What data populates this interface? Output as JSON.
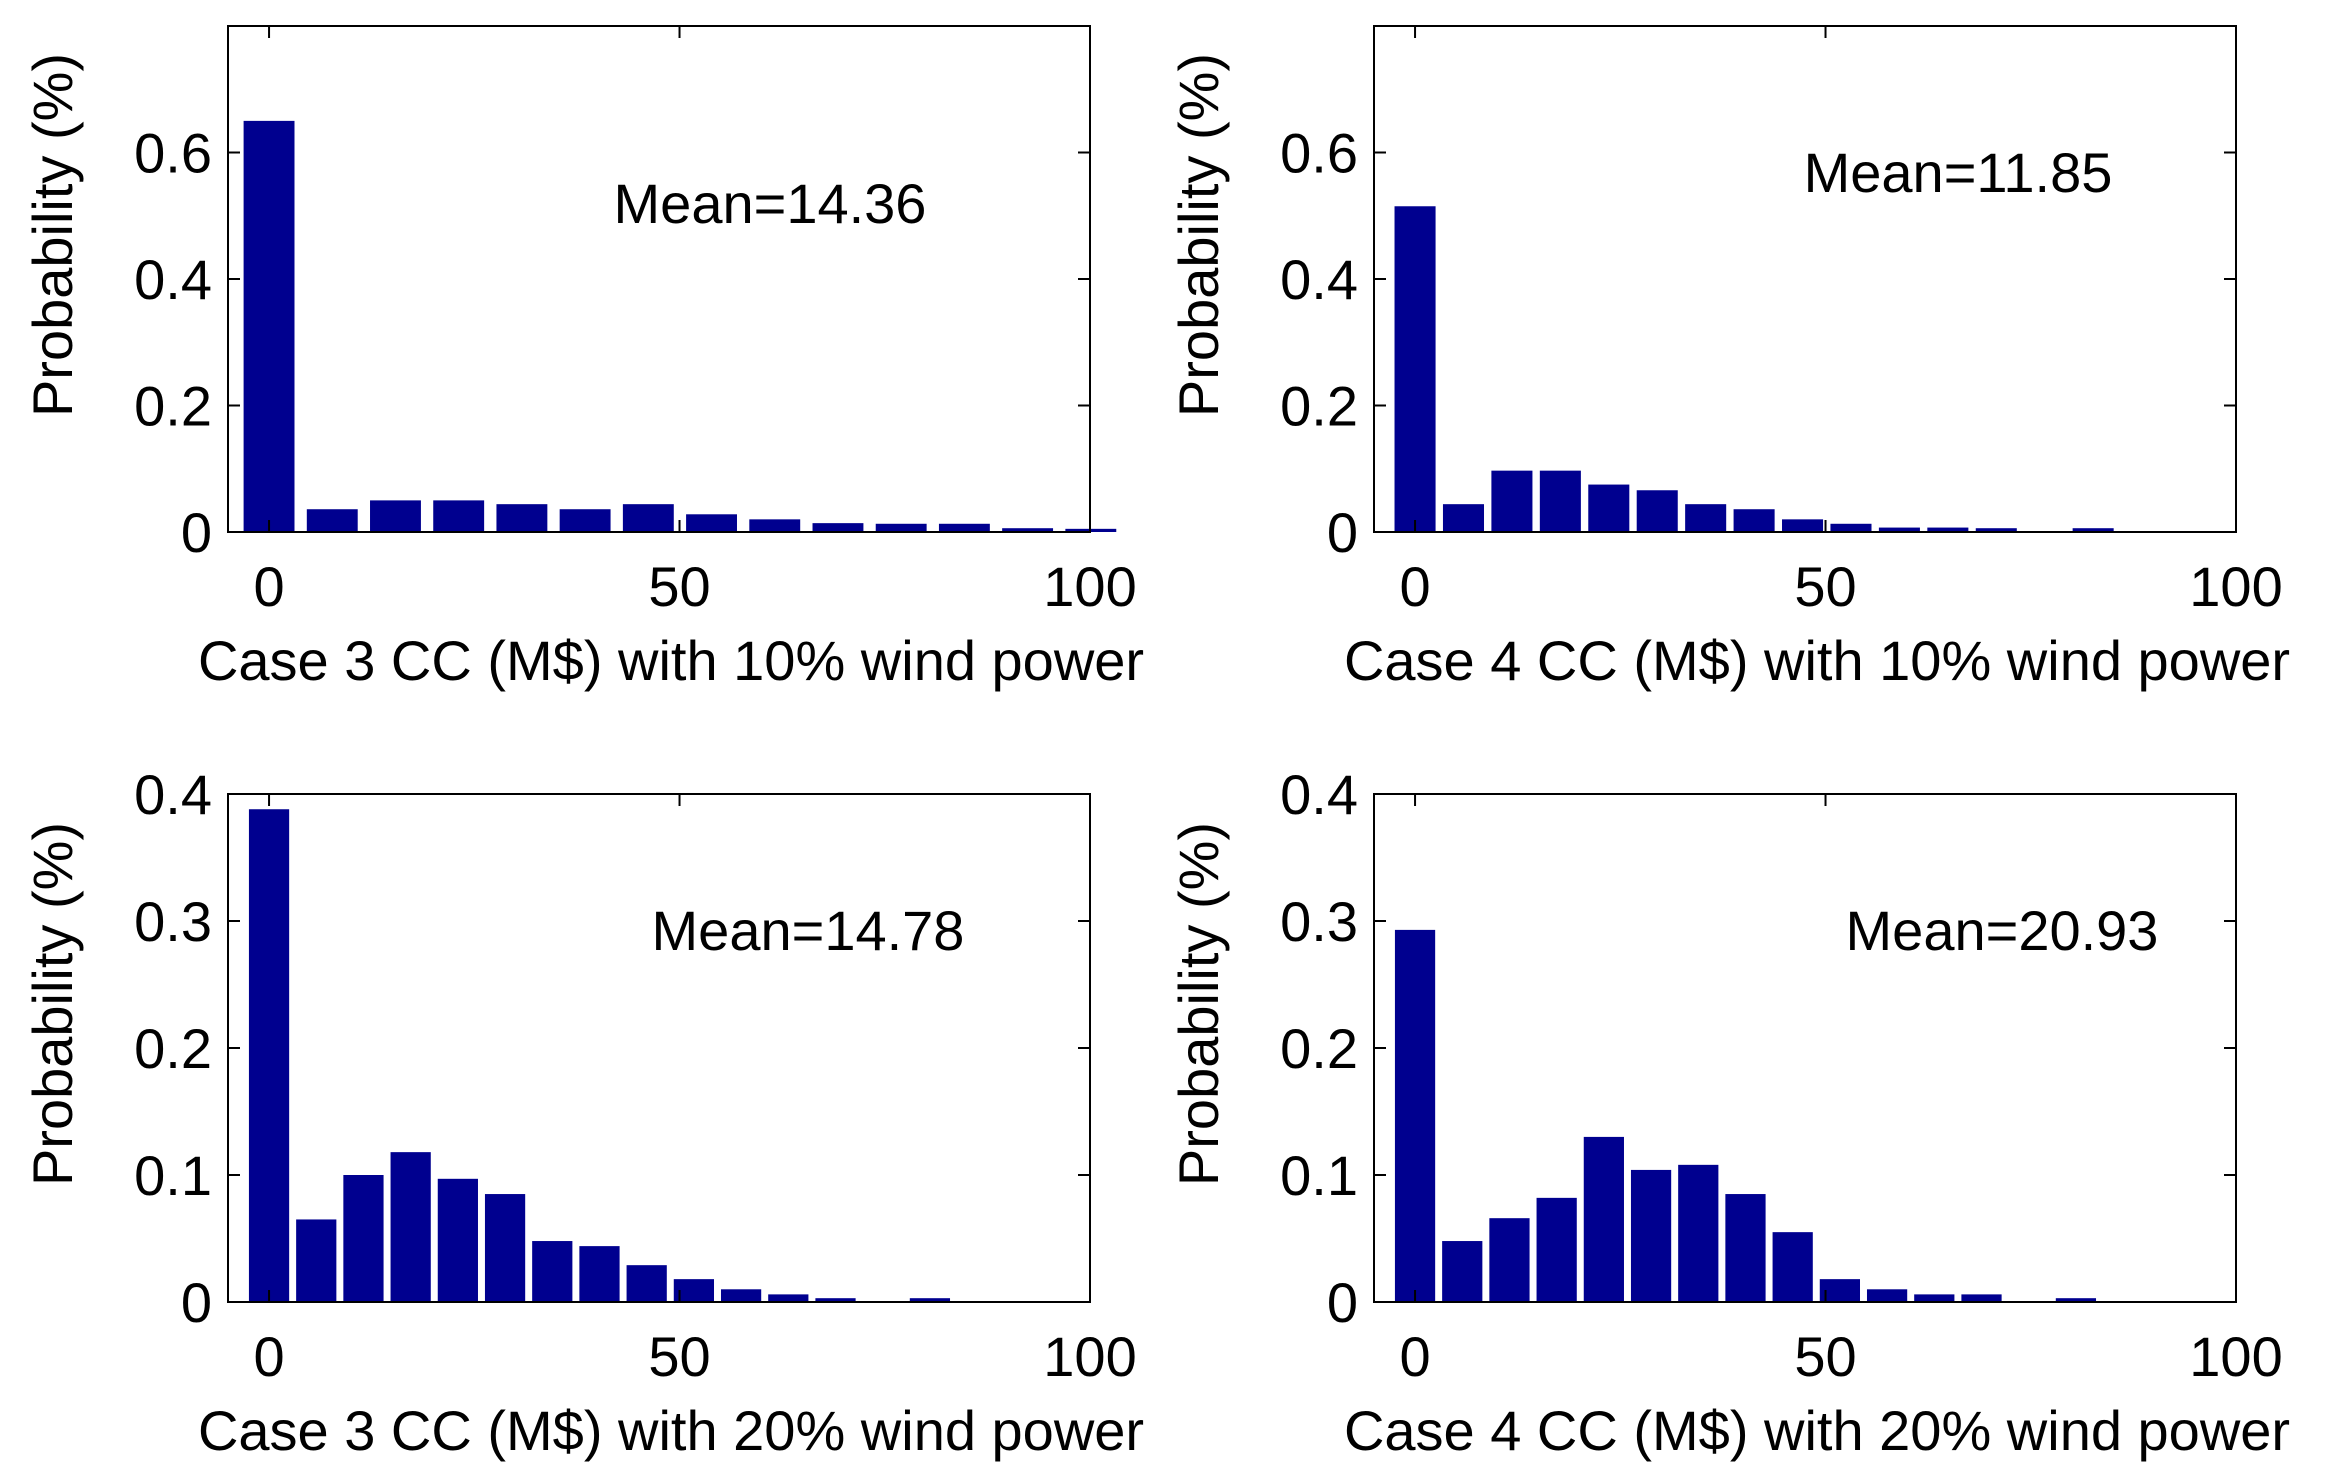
{
  "colors": {
    "bar": "#00008F",
    "axis": "#000000",
    "background": "#FFFFFF"
  },
  "chart_data": [
    {
      "type": "bar",
      "title": "",
      "xlabel": "Case 3 CC (M$) with 10% wind power",
      "ylabel": "Probability (%)",
      "annotation": "Mean=14.36",
      "xlim": [
        -5,
        100
      ],
      "ylim": [
        0,
        0.8
      ],
      "xticks": [
        0,
        50,
        100
      ],
      "yticks": [
        0,
        0.2,
        0.4,
        0.6
      ],
      "xtick_labels": [
        "0",
        "50",
        "100"
      ],
      "ytick_labels": [
        "0",
        "0.2",
        "0.4",
        "0.6"
      ],
      "bar_width": 6.2,
      "x": [
        0,
        7.7,
        15.4,
        23.1,
        30.8,
        38.5,
        46.2,
        53.9,
        61.6,
        69.3,
        77,
        84.7,
        92.4,
        100.1
      ],
      "values": [
        0.65,
        0.036,
        0.05,
        0.05,
        0.044,
        0.036,
        0.044,
        0.028,
        0.02,
        0.014,
        0.013,
        0.013,
        0.006,
        0.005
      ]
    },
    {
      "type": "bar",
      "title": "",
      "xlabel": "Case 4 CC (M$) with 10% wind power",
      "ylabel": "Probability (%)",
      "annotation": "Mean=11.85",
      "xlim": [
        -5,
        100
      ],
      "ylim": [
        0,
        0.8
      ],
      "xticks": [
        0,
        50,
        100
      ],
      "yticks": [
        0,
        0.2,
        0.4,
        0.6
      ],
      "xtick_labels": [
        "0",
        "50",
        "100"
      ],
      "ytick_labels": [
        "0",
        "0.2",
        "0.4",
        "0.6"
      ],
      "bar_width": 5.0,
      "x": [
        0,
        5.9,
        11.8,
        17.7,
        23.6,
        29.5,
        35.4,
        41.3,
        47.2,
        53.1,
        59,
        64.9,
        70.8,
        76.7,
        82.6
      ],
      "values": [
        0.515,
        0.044,
        0.097,
        0.097,
        0.075,
        0.066,
        0.044,
        0.036,
        0.02,
        0.013,
        0.007,
        0.007,
        0.006,
        0,
        0.006
      ]
    },
    {
      "type": "bar",
      "title": "",
      "xlabel": "Case 3 CC (M$) with 20% wind power",
      "ylabel": "Probability (%)",
      "annotation": "Mean=14.78",
      "xlim": [
        -5,
        100
      ],
      "ylim": [
        0,
        0.4
      ],
      "xticks": [
        0,
        50,
        100
      ],
      "yticks": [
        0,
        0.1,
        0.2,
        0.3,
        0.4
      ],
      "xtick_labels": [
        "0",
        "50",
        "100"
      ],
      "ytick_labels": [
        "0",
        "0.1",
        "0.2",
        "0.3",
        "0.4"
      ],
      "bar_width": 4.9,
      "x": [
        0,
        5.75,
        11.5,
        17.25,
        23,
        28.75,
        34.5,
        40.25,
        46,
        51.75,
        57.5,
        63.25,
        69,
        74.75,
        80.5
      ],
      "values": [
        0.388,
        0.065,
        0.1,
        0.118,
        0.097,
        0.085,
        0.048,
        0.044,
        0.029,
        0.018,
        0.01,
        0.006,
        0.003,
        0,
        0.003
      ]
    },
    {
      "type": "bar",
      "title": "",
      "xlabel": "Case 4 CC (M$) with 20% wind power",
      "ylabel": "Probability (%)",
      "annotation": "Mean=20.93",
      "xlim": [
        -5,
        100
      ],
      "ylim": [
        0,
        0.4
      ],
      "xticks": [
        0,
        50,
        100
      ],
      "yticks": [
        0,
        0.1,
        0.2,
        0.3,
        0.4
      ],
      "xtick_labels": [
        "0",
        "50",
        "100"
      ],
      "ytick_labels": [
        "0",
        "0.1",
        "0.2",
        "0.3",
        "0.4"
      ],
      "bar_width": 4.9,
      "x": [
        0,
        5.75,
        11.5,
        17.25,
        23,
        28.75,
        34.5,
        40.25,
        46,
        51.75,
        57.5,
        63.25,
        69,
        74.75,
        80.5
      ],
      "values": [
        0.293,
        0.048,
        0.066,
        0.082,
        0.13,
        0.104,
        0.108,
        0.085,
        0.055,
        0.018,
        0.01,
        0.006,
        0.006,
        0,
        0.003
      ]
    }
  ]
}
